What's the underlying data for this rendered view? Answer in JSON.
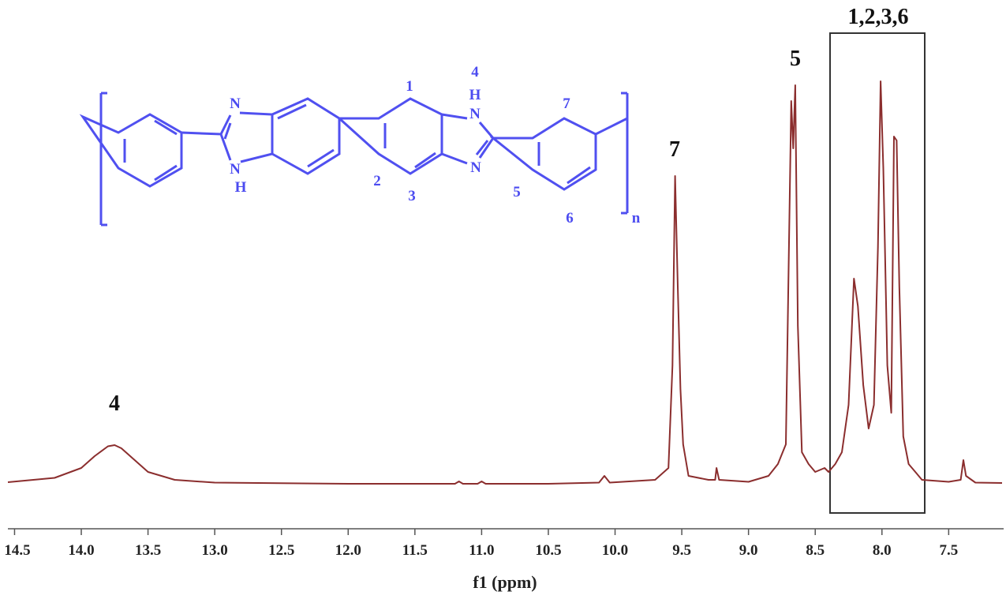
{
  "chart_data": {
    "type": "line",
    "xlabel": "f1 (ppm)",
    "xlim": [
      14.55,
      7.1
    ],
    "ylim": [
      0,
      105
    ],
    "xticks": [
      {
        "value": 14.5,
        "label": "14.5"
      },
      {
        "value": 14.0,
        "label": "14.0"
      },
      {
        "value": 13.5,
        "label": "13.5"
      },
      {
        "value": 13.0,
        "label": "13.0"
      },
      {
        "value": 12.5,
        "label": "12.5"
      },
      {
        "value": 12.0,
        "label": "12.0"
      },
      {
        "value": 11.5,
        "label": "11.5"
      },
      {
        "value": 11.0,
        "label": "11.0"
      },
      {
        "value": 10.5,
        "label": "10.5"
      },
      {
        "value": 10.0,
        "label": "10.0"
      },
      {
        "value": 9.5,
        "label": "9.5"
      },
      {
        "value": 9.0,
        "label": "9.0"
      },
      {
        "value": 8.5,
        "label": "8.5"
      },
      {
        "value": 8.0,
        "label": "8.0"
      },
      {
        "value": 7.5,
        "label": "7.5"
      }
    ],
    "series": [
      {
        "color": "#8b2e2e",
        "x": [
          14.55,
          14.2,
          14.0,
          13.9,
          13.8,
          13.75,
          13.7,
          13.6,
          13.5,
          13.3,
          13.0,
          12.0,
          11.2,
          11.17,
          11.14,
          11.03,
          11.0,
          10.97,
          10.5,
          10.12,
          10.08,
          10.04,
          9.7,
          9.6,
          9.57,
          9.55,
          9.53,
          9.51,
          9.49,
          9.45,
          9.3,
          9.25,
          9.24,
          9.22,
          9.0,
          8.85,
          8.78,
          8.72,
          8.68,
          8.665,
          8.65,
          8.63,
          8.6,
          8.55,
          8.5,
          8.43,
          8.4,
          8.35,
          8.3,
          8.25,
          8.21,
          8.18,
          8.14,
          8.1,
          8.06,
          8.03,
          8.01,
          7.99,
          7.96,
          7.93,
          7.91,
          7.89,
          7.87,
          7.84,
          7.8,
          7.75,
          7.7,
          7.5,
          7.41,
          7.39,
          7.37,
          7.3,
          7.1
        ],
        "values": [
          0.4,
          1.5,
          4,
          7,
          9.5,
          9.8,
          9,
          6,
          3,
          1,
          0.3,
          0,
          0,
          0.6,
          0,
          0,
          0.6,
          0,
          0,
          0.3,
          2,
          0.3,
          1,
          4,
          30,
          78,
          50,
          24,
          10,
          2,
          1,
          1,
          4,
          1,
          0.5,
          2,
          5,
          10,
          97,
          85,
          101,
          40,
          8,
          5,
          3,
          4,
          3,
          5,
          8,
          20,
          52,
          45,
          25,
          14,
          20,
          60,
          102,
          80,
          30,
          18,
          88,
          87,
          50,
          12,
          5,
          3,
          1,
          0.5,
          1,
          6,
          2,
          0.3,
          0.2
        ]
      }
    ],
    "annotations": [
      "4",
      "7",
      "5",
      "1,2,3,6"
    ],
    "structure_labels": [
      "N",
      "N",
      "H",
      "1",
      "4",
      "H",
      "N",
      "7",
      "2",
      "3",
      "N",
      "5",
      "6",
      "n"
    ]
  }
}
